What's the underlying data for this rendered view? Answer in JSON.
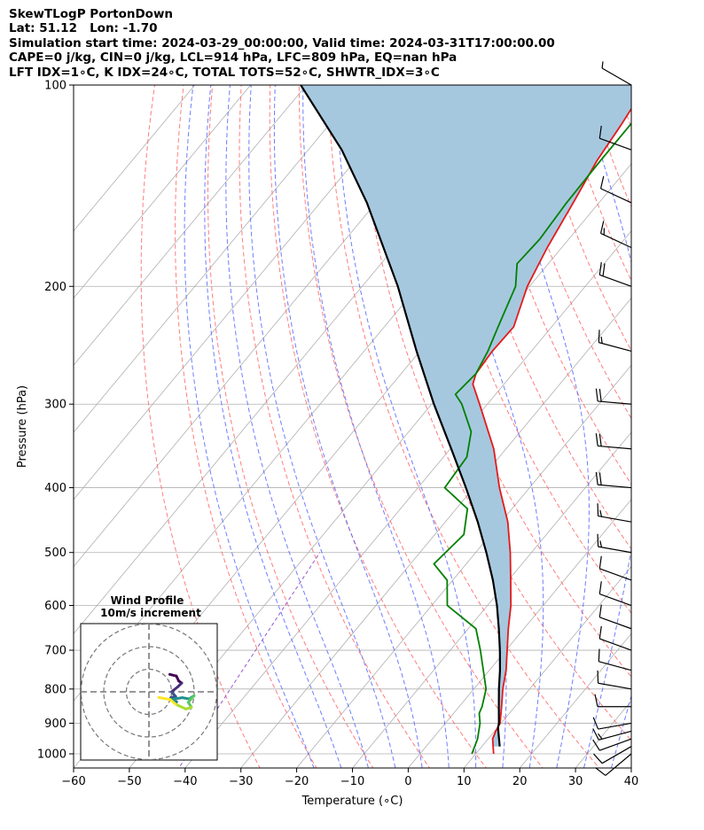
{
  "title_lines": [
    "SkewTLogP PortonDown",
    "Lat: 51.12   Lon: -1.70",
    "Simulation start time: 2024-03-29_00:00:00, Valid time: 2024-03-31T17:00:00.00",
    "CAPE=0 j/kg, CIN=0 j/kg, LCL=914 hPa, LFC=809 hPa, EQ=nan hPa",
    "LFT IDX=1∘C, K IDX=24∘C, TOTAL TOTS=52∘C, SHWTR_IDX=3∘C"
  ],
  "chart_data": {
    "type": "skew-t log-p",
    "title": "SkewTLogP PortonDown",
    "xlabel": "Temperature (∘C)",
    "ylabel": "Pressure (hPa)",
    "xlim": [
      -60,
      40
    ],
    "ylim": [
      1050,
      100
    ],
    "y_scale": "log",
    "x_ticks": [
      -60,
      -50,
      -40,
      -30,
      -20,
      -10,
      0,
      10,
      20,
      30,
      40
    ],
    "y_ticks": [
      100,
      200,
      300,
      400,
      500,
      600,
      700,
      800,
      900,
      1000
    ],
    "series": [
      {
        "name": "Temperature",
        "color": "#e41a1c",
        "points": [
          [
            1000,
            13.2
          ],
          [
            950,
            10.8
          ],
          [
            925,
            10.2
          ],
          [
            900,
            9.8
          ],
          [
            850,
            7.6
          ],
          [
            800,
            5.2
          ],
          [
            750,
            3.0
          ],
          [
            700,
            0.2
          ],
          [
            650,
            -2.8
          ],
          [
            600,
            -5.8
          ],
          [
            550,
            -9.6
          ],
          [
            500,
            -13.8
          ],
          [
            450,
            -18.8
          ],
          [
            400,
            -25.4
          ],
          [
            350,
            -32.2
          ],
          [
            300,
            -41.4
          ],
          [
            280,
            -45.6
          ],
          [
            270,
            -46.6
          ],
          [
            250,
            -47.0
          ],
          [
            230,
            -46.8
          ],
          [
            200,
            -50.4
          ],
          [
            175,
            -52.6
          ],
          [
            150,
            -54.6
          ],
          [
            130,
            -56.6
          ],
          [
            115,
            -57.6
          ],
          [
            100,
            -59.0
          ]
        ]
      },
      {
        "name": "Dewpoint",
        "color": "#008000",
        "points": [
          [
            1000,
            9.3
          ],
          [
            950,
            8.1
          ],
          [
            900,
            6.2
          ],
          [
            870,
            4.6
          ],
          [
            850,
            4.1
          ],
          [
            800,
            2.2
          ],
          [
            700,
            -4.6
          ],
          [
            650,
            -8.6
          ],
          [
            600,
            -17.2
          ],
          [
            550,
            -21.0
          ],
          [
            520,
            -25.8
          ],
          [
            470,
            -24.8
          ],
          [
            430,
            -28.0
          ],
          [
            400,
            -35.2
          ],
          [
            360,
            -35.8
          ],
          [
            330,
            -38.8
          ],
          [
            300,
            -44.6
          ],
          [
            290,
            -47.2
          ],
          [
            270,
            -46.6
          ],
          [
            250,
            -47.8
          ],
          [
            230,
            -49.6
          ],
          [
            200,
            -52.5
          ],
          [
            185,
            -55.6
          ],
          [
            170,
            -55.2
          ],
          [
            150,
            -55.8
          ],
          [
            130,
            -56.0
          ],
          [
            100,
            -56.0
          ]
        ]
      },
      {
        "name": "Parcel",
        "color": "#000000",
        "points": [
          [
            975,
            13.2
          ],
          [
            914,
            10.1
          ],
          [
            900,
            9.6
          ],
          [
            850,
            7.1
          ],
          [
            800,
            4.5
          ],
          [
            750,
            1.9
          ],
          [
            700,
            -1.1
          ],
          [
            650,
            -4.5
          ],
          [
            600,
            -8.3
          ],
          [
            550,
            -12.8
          ],
          [
            500,
            -18.1
          ],
          [
            450,
            -24.2
          ],
          [
            400,
            -31.4
          ],
          [
            350,
            -39.8
          ],
          [
            300,
            -49.6
          ],
          [
            250,
            -60.6
          ],
          [
            200,
            -73.6
          ],
          [
            150,
            -91.6
          ],
          [
            125,
            -104.0
          ],
          [
            100,
            -121.0
          ]
        ]
      }
    ],
    "shaded_region": "CAPE/CIN area between temperature and parcel",
    "wind_barbs": {
      "units": "m/s",
      "levels": [
        [
          1000,
          230,
          12
        ],
        [
          975,
          240,
          14
        ],
        [
          950,
          250,
          14
        ],
        [
          925,
          255,
          15
        ],
        [
          900,
          260,
          13
        ],
        [
          850,
          270,
          10
        ],
        [
          800,
          280,
          12
        ],
        [
          750,
          285,
          10
        ],
        [
          700,
          290,
          12
        ],
        [
          650,
          290,
          13
        ],
        [
          600,
          290,
          12
        ],
        [
          550,
          290,
          10
        ],
        [
          500,
          280,
          15
        ],
        [
          450,
          280,
          18
        ],
        [
          400,
          275,
          20
        ],
        [
          350,
          275,
          20
        ],
        [
          300,
          275,
          20
        ],
        [
          250,
          285,
          18
        ],
        [
          200,
          290,
          20
        ],
        [
          175,
          295,
          18
        ],
        [
          150,
          295,
          13
        ],
        [
          125,
          290,
          10
        ],
        [
          100,
          300,
          5
        ]
      ]
    },
    "hodograph": {
      "title_line1": "Wind Profile",
      "title_line2": "10m/s increment",
      "rings_mps": [
        10,
        20,
        30
      ],
      "colormap": "viridis"
    }
  },
  "colors": {
    "temperature": "#e41a1c",
    "dewpoint": "#008000",
    "parcel": "#000000",
    "cape_shade": "#a6c8df",
    "isotherm": "#b0b0b0",
    "dry_adiabat": "#ff6666",
    "moist_adiabat": "#5566ff",
    "mixing_ratio": "#9955cc",
    "grid": "#b0b0b0"
  }
}
